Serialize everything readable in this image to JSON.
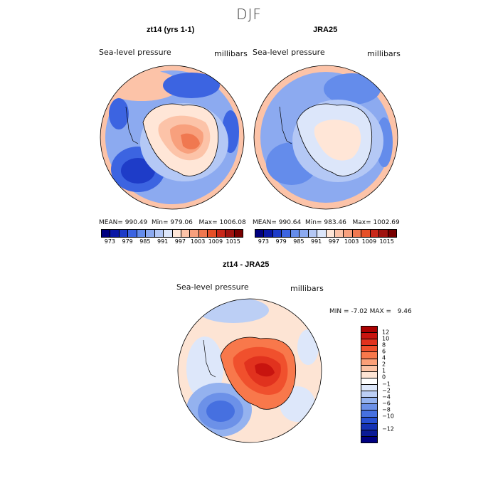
{
  "figure_title": "DJF",
  "panels": [
    {
      "title": "zt14 (yrs 1-1)",
      "variable_label": "Sea-level pressure",
      "units_label": "millibars",
      "stats": {
        "mean_label": "MEAN=",
        "mean": "990.49",
        "min_label": "Min=",
        "min": "979.06",
        "max_label": "Max=",
        "max": "1006.08"
      }
    },
    {
      "title": "JRA25",
      "variable_label": "Sea-level pressure",
      "units_label": "millibars",
      "stats": {
        "mean_label": "MEAN=",
        "mean": "990.64",
        "min_label": "Min=",
        "min": "983.46",
        "max_label": "Max=",
        "max": "1002.69"
      }
    },
    {
      "title": "zt14 - JRA25",
      "variable_label": "Sea-level pressure",
      "units_label": "millibars",
      "stats": {
        "min_label": "MIN =",
        "min": "-7.02",
        "max_label": "MAX =",
        "max": "9.46"
      }
    }
  ],
  "colorbar_main": {
    "colors": [
      "#00007f",
      "#0a17a5",
      "#1e3cc8",
      "#3c64e1",
      "#648ceb",
      "#8caaf0",
      "#b4c8f5",
      "#dce6fa",
      "#ffe6d7",
      "#fcc3a8",
      "#f8a07d",
      "#f07850",
      "#e65028",
      "#c8281a",
      "#a01410",
      "#780000"
    ],
    "ticks": [
      "973",
      "979",
      "985",
      "991",
      "997",
      "1003",
      "1009",
      "1015"
    ]
  },
  "colorbar_diff": {
    "colors": [
      "#aa0000",
      "#c8140f",
      "#e1321e",
      "#f0502d",
      "#f8784b",
      "#fca078",
      "#fcc3a5",
      "#fde4d4",
      "#ffffff",
      "#dde7fa",
      "#bccff5",
      "#94b2ef",
      "#6c91e8",
      "#4670e0",
      "#2850d2",
      "#1432b4",
      "#0a1a96",
      "#000080"
    ],
    "ticks": [
      "12",
      "10",
      "8",
      "6",
      "4",
      "2",
      "1",
      "0",
      "−1",
      "−2",
      "−4",
      "−6",
      "−8",
      "−10",
      "−12"
    ]
  },
  "map_colors": {
    "ocean_mid": "#8caaf0",
    "ocean_deep": "#3c64e1",
    "ocean_light": "#dce6fa",
    "rim": "#fcc3a8",
    "land_warm": "#f8a07d",
    "land_hot": "#f07850",
    "diff_deep": "#e1321e",
    "diff_neg": "#4670e0"
  }
}
